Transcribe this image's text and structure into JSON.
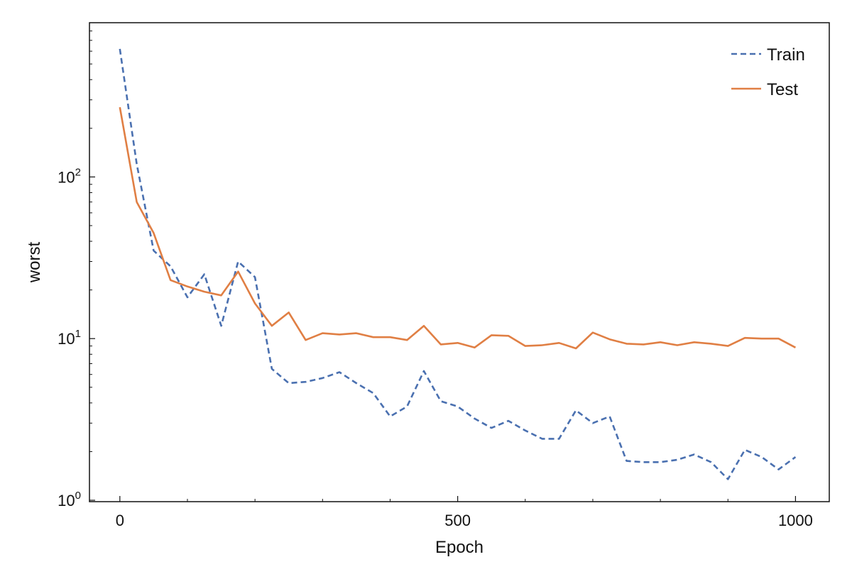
{
  "chart_data": {
    "type": "line",
    "title": "",
    "xlabel": "Epoch",
    "ylabel": "worst",
    "yscale": "log",
    "xlim": [
      -45,
      1050
    ],
    "ylim": [
      0.98,
      900
    ],
    "x_major_ticks": [
      0,
      500,
      1000
    ],
    "x_tick_labels": [
      "0",
      "500",
      "1000"
    ],
    "x_minor_ticks": [
      100,
      200,
      300,
      400,
      600,
      700,
      800,
      900
    ],
    "y_major_ticks": [
      1,
      10,
      100
    ],
    "y_tick_labels": [
      {
        "base": "10",
        "exp": "0"
      },
      {
        "base": "10",
        "exp": "1"
      },
      {
        "base": "10",
        "exp": "2"
      }
    ],
    "grid": false,
    "legend_position": "top-right",
    "series": [
      {
        "name": "Train",
        "color": "#4a70b0",
        "style": "dashed",
        "x": [
          0,
          25,
          50,
          75,
          100,
          125,
          150,
          175,
          200,
          225,
          250,
          275,
          300,
          325,
          350,
          375,
          400,
          425,
          450,
          475,
          500,
          525,
          550,
          575,
          600,
          625,
          650,
          675,
          700,
          725,
          750,
          775,
          800,
          825,
          850,
          875,
          900,
          925,
          950,
          975,
          1000
        ],
        "y": [
          620,
          120,
          35,
          28,
          18,
          25,
          12,
          30,
          24,
          6.5,
          5.3,
          5.4,
          5.7,
          6.2,
          5.3,
          4.6,
          3.3,
          3.8,
          6.3,
          4.1,
          3.8,
          3.2,
          2.8,
          3.1,
          2.7,
          2.4,
          2.4,
          3.6,
          3.0,
          3.3,
          1.75,
          1.72,
          1.72,
          1.78,
          1.92,
          1.72,
          1.35,
          2.05,
          1.85,
          1.55,
          1.85
        ]
      },
      {
        "name": "Test",
        "color": "#e07f44",
        "style": "solid",
        "x": [
          0,
          25,
          50,
          75,
          100,
          125,
          150,
          175,
          200,
          225,
          250,
          275,
          300,
          325,
          350,
          375,
          400,
          425,
          450,
          475,
          500,
          525,
          550,
          575,
          600,
          625,
          650,
          675,
          700,
          725,
          750,
          775,
          800,
          825,
          850,
          875,
          900,
          925,
          950,
          975,
          1000
        ],
        "y": [
          270,
          70,
          45,
          23,
          21,
          19.5,
          18.5,
          26,
          16.5,
          12,
          14.5,
          9.8,
          10.8,
          10.6,
          10.8,
          10.2,
          10.2,
          9.8,
          12,
          9.2,
          9.4,
          8.8,
          10.5,
          10.4,
          9.0,
          9.1,
          9.4,
          8.7,
          10.9,
          9.9,
          9.3,
          9.2,
          9.5,
          9.1,
          9.5,
          9.3,
          9.0,
          10.1,
          10.0,
          10.0,
          8.8
        ]
      }
    ]
  }
}
